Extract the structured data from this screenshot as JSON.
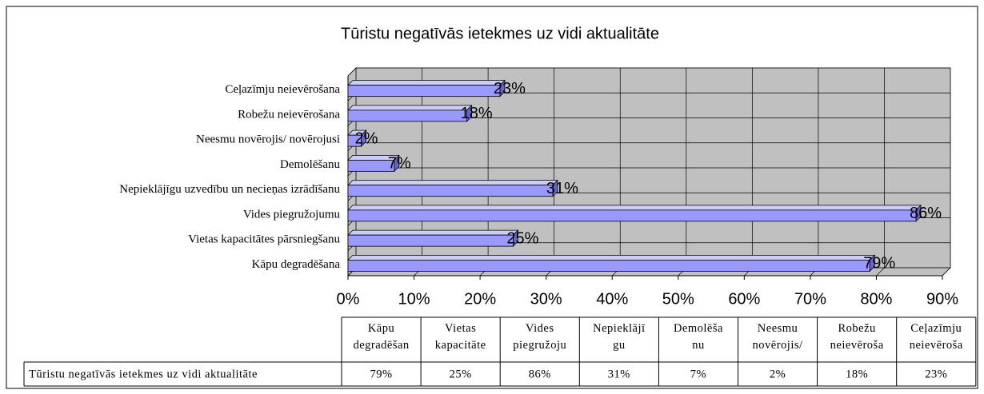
{
  "chart_data": {
    "type": "bar",
    "orientation": "horizontal",
    "title": "Tūristu negatīvās ietekmes uz vidi aktualitāte",
    "categories": [
      "Kāpu degradēšana",
      "Vietas kapacitātes pārsniegšanu",
      "Vides piegružojumu",
      "Nepieklājīgu uzvedību un necieņas izrādīšanu",
      "Demolēšanu",
      "Neesmu novērojis/ novērojusi",
      "Robežu neievērošana",
      "Ceļazīmju neievērošana"
    ],
    "series": [
      {
        "name": "Tūristu negatīvās ietekmes uz vidi aktualitāte",
        "color": "#9999ff",
        "values": [
          79,
          25,
          86,
          31,
          7,
          2,
          18,
          23
        ],
        "value_labels": [
          "79%",
          "25%",
          "86%",
          "31%",
          "7%",
          "2%",
          "18%",
          "23%"
        ]
      }
    ],
    "xlim": [
      0,
      90
    ],
    "xticks": [
      {
        "value": 0,
        "label": "0%"
      },
      {
        "value": 10,
        "label": "10%"
      },
      {
        "value": 20,
        "label": "20%"
      },
      {
        "value": 30,
        "label": "30%"
      },
      {
        "value": 40,
        "label": "40%"
      },
      {
        "value": 50,
        "label": "50%"
      },
      {
        "value": 60,
        "label": "60%"
      },
      {
        "value": 70,
        "label": "70%"
      },
      {
        "value": 80,
        "label": "80%"
      },
      {
        "value": 90,
        "label": "90%"
      }
    ],
    "grid": true
  },
  "data_table": {
    "headers": [
      "Kāpu\ndegradēšan",
      "Vietas\nkapacitāte",
      "Vides\npiegružoju",
      "Nepieklājī\ngu",
      "Demolēša\nnu",
      "Neesmu\nnovērojis/",
      "Robežu\nneievēroša",
      "Ceļazīmju\nneievēroša"
    ]
  }
}
